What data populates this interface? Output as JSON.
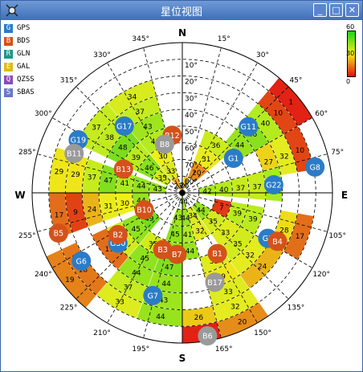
{
  "window": {
    "title": "星位视图",
    "min_label": "_",
    "max_label": "□",
    "close_label": "✕"
  },
  "legend": [
    {
      "code": "G",
      "name": "GPS",
      "color": "#2a7cc8"
    },
    {
      "code": "B",
      "name": "BDS",
      "color": "#d4521a"
    },
    {
      "code": "R",
      "name": "GLN",
      "color": "#1a9a8a"
    },
    {
      "code": "E",
      "name": "GAL",
      "color": "#e0b81c"
    },
    {
      "code": "Q",
      "name": "QZSS",
      "color": "#8a4ab8"
    },
    {
      "code": "S",
      "name": "SBAS",
      "color": "#6a78c8"
    }
  ],
  "scale": {
    "top": "60",
    "mid": "30",
    "bottom": "0"
  },
  "compass": {
    "n": "N",
    "e": "E",
    "s": "S",
    "w": "W"
  },
  "azimuth_labels": [
    "15°",
    "30°",
    "45°",
    "60°",
    "75°",
    "105°",
    "120°",
    "135°",
    "150°",
    "165°",
    "195°",
    "210°",
    "225°",
    "240°",
    "255°",
    "285°",
    "300°",
    "315°",
    "330°",
    "345°"
  ],
  "elevation_labels": [
    "10°",
    "20°",
    "30°",
    "40°",
    "50°",
    "60°",
    "70°",
    "80°"
  ],
  "colors": {
    "gps": "#2a7cc8",
    "bds": "#d4521a",
    "gray": "#9a9a9a"
  },
  "satellites": [
    {
      "id": "G1",
      "sys": "gps",
      "az": 56,
      "el": 53
    },
    {
      "id": "G11",
      "sys": "gps",
      "az": 45,
      "el": 34
    },
    {
      "id": "G8",
      "sys": "gps",
      "az": 79,
      "el": 9
    },
    {
      "id": "G22",
      "sys": "gps",
      "az": 85,
      "el": 35
    },
    {
      "id": "G3",
      "sys": "gps",
      "az": 118,
      "el": 32
    },
    {
      "id": "G17",
      "sys": "gps",
      "az": 319,
      "el": 37
    },
    {
      "id": "G19",
      "sys": "gps",
      "az": 297,
      "el": 20
    },
    {
      "id": "G30",
      "sys": "gps",
      "az": 232,
      "el": 41
    },
    {
      "id": "G6",
      "sys": "gps",
      "az": 236,
      "el": 17
    },
    {
      "id": "G7",
      "sys": "gps",
      "az": 196,
      "el": 26
    },
    {
      "id": "B12",
      "sys": "bds",
      "az": 350,
      "el": 55
    },
    {
      "id": "B13",
      "sys": "bds",
      "az": 292,
      "el": 52
    },
    {
      "id": "B10",
      "sys": "bds",
      "az": 246,
      "el": 65
    },
    {
      "id": "B5",
      "sys": "bds",
      "az": 252,
      "el": 12
    },
    {
      "id": "B2",
      "sys": "bds",
      "az": 237,
      "el": 44
    },
    {
      "id": "B3",
      "sys": "bds",
      "az": 199,
      "el": 54
    },
    {
      "id": "B7",
      "sys": "bds",
      "az": 185,
      "el": 53
    },
    {
      "id": "B1",
      "sys": "bds",
      "az": 150,
      "el": 48
    },
    {
      "id": "B4",
      "sys": "bds",
      "az": 117,
      "el": 26
    },
    {
      "id": "B8",
      "sys": "gray",
      "az": 340,
      "el": 59
    },
    {
      "id": "B11",
      "sys": "gray",
      "az": 290,
      "el": 21
    },
    {
      "id": "B17",
      "sys": "gray",
      "az": 160,
      "el": 33
    },
    {
      "id": "B6",
      "sys": "gray",
      "az": 170,
      "el": 3
    }
  ],
  "tracks": [
    {
      "start": 5,
      "end": 25,
      "cells": [
        [
          8,
          "26"
        ]
      ]
    },
    {
      "start": 40,
      "end": 60,
      "cells": [
        [
          0,
          "1"
        ],
        [
          1,
          "10"
        ],
        [
          2,
          "40"
        ],
        [
          3,
          "46"
        ],
        [
          4,
          "44"
        ]
      ]
    },
    {
      "start": 60,
      "end": 80,
      "cells": [
        [
          1,
          "10"
        ],
        [
          2,
          "32"
        ],
        [
          3,
          "27"
        ]
      ]
    },
    {
      "start": 60,
      "end": 80,
      "cells": [
        [
          1,
          "10"
        ]
      ]
    },
    {
      "start": 20,
      "end": 50,
      "cells": [
        [
          5,
          "36"
        ],
        [
          6,
          "31"
        ],
        [
          7,
          "20"
        ]
      ]
    },
    {
      "start": 75,
      "end": 95,
      "cells": [
        [
          3,
          "42"
        ],
        [
          4,
          "37"
        ],
        [
          5,
          "37"
        ],
        [
          6,
          "40"
        ],
        [
          7,
          "42"
        ]
      ]
    },
    {
      "start": 100,
      "end": 120,
      "cells": [
        [
          1,
          "17"
        ],
        [
          2,
          "28"
        ],
        [
          4,
          "39"
        ],
        [
          5,
          "39"
        ],
        [
          6,
          "7"
        ]
      ]
    },
    {
      "start": 120,
      "end": 145,
      "cells": [
        [
          2,
          "24"
        ],
        [
          3,
          "32"
        ],
        [
          4,
          "35"
        ],
        [
          5,
          "33"
        ],
        [
          6,
          "35"
        ],
        [
          7,
          "44"
        ]
      ]
    },
    {
      "start": 145,
      "end": 165,
      "cells": [
        [
          0,
          "20"
        ],
        [
          1,
          "32"
        ],
        [
          2,
          "33"
        ],
        [
          3,
          "29"
        ],
        [
          4,
          "33"
        ],
        [
          6,
          "32"
        ],
        [
          7,
          "34"
        ]
      ]
    },
    {
      "start": 165,
      "end": 180,
      "cells": [
        [
          0,
          "1"
        ],
        [
          1,
          "26"
        ],
        [
          5,
          "44"
        ],
        [
          6,
          "41"
        ],
        [
          7,
          "44"
        ],
        [
          8,
          "44"
        ]
      ]
    },
    {
      "start": 180,
      "end": 200,
      "cells": [
        [
          1,
          "44"
        ],
        [
          2,
          "43"
        ],
        [
          3,
          "44"
        ],
        [
          4,
          "47"
        ],
        [
          5,
          "44"
        ],
        [
          6,
          "45"
        ],
        [
          7,
          "43"
        ]
      ]
    },
    {
      "start": 200,
      "end": 220,
      "cells": [
        [
          1,
          "33"
        ],
        [
          2,
          "37"
        ],
        [
          3,
          "44"
        ],
        [
          4,
          "45"
        ],
        [
          5,
          "35"
        ]
      ]
    },
    {
      "start": 220,
      "end": 245,
      "cells": [
        [
          0,
          "19"
        ],
        [
          1,
          "18"
        ],
        [
          3,
          "17"
        ],
        [
          4,
          "35"
        ],
        [
          5,
          "45"
        ],
        [
          6,
          "49"
        ]
      ]
    },
    {
      "start": 250,
      "end": 270,
      "cells": [
        [
          1,
          "17"
        ],
        [
          2,
          "9"
        ],
        [
          3,
          "24"
        ],
        [
          4,
          "31"
        ],
        [
          5,
          "30"
        ],
        [
          6,
          "44"
        ]
      ]
    },
    {
      "start": 270,
      "end": 290,
      "cells": [
        [
          1,
          "29"
        ],
        [
          2,
          "29"
        ],
        [
          3,
          "37"
        ],
        [
          4,
          "47"
        ],
        [
          5,
          "41"
        ],
        [
          6,
          "44"
        ],
        [
          7,
          "43"
        ]
      ]
    },
    {
      "start": 295,
      "end": 320,
      "cells": [
        [
          2,
          "37"
        ],
        [
          3,
          "38"
        ],
        [
          4,
          "48"
        ],
        [
          5,
          "39"
        ],
        [
          6,
          "46"
        ],
        [
          7,
          "35"
        ]
      ]
    },
    {
      "start": 320,
      "end": 345,
      "cells": [
        [
          2,
          "34"
        ],
        [
          3,
          "37"
        ],
        [
          4,
          "43"
        ],
        [
          5,
          "40"
        ],
        [
          6,
          "30"
        ],
        [
          7,
          "33"
        ],
        [
          8,
          "23"
        ]
      ]
    }
  ]
}
